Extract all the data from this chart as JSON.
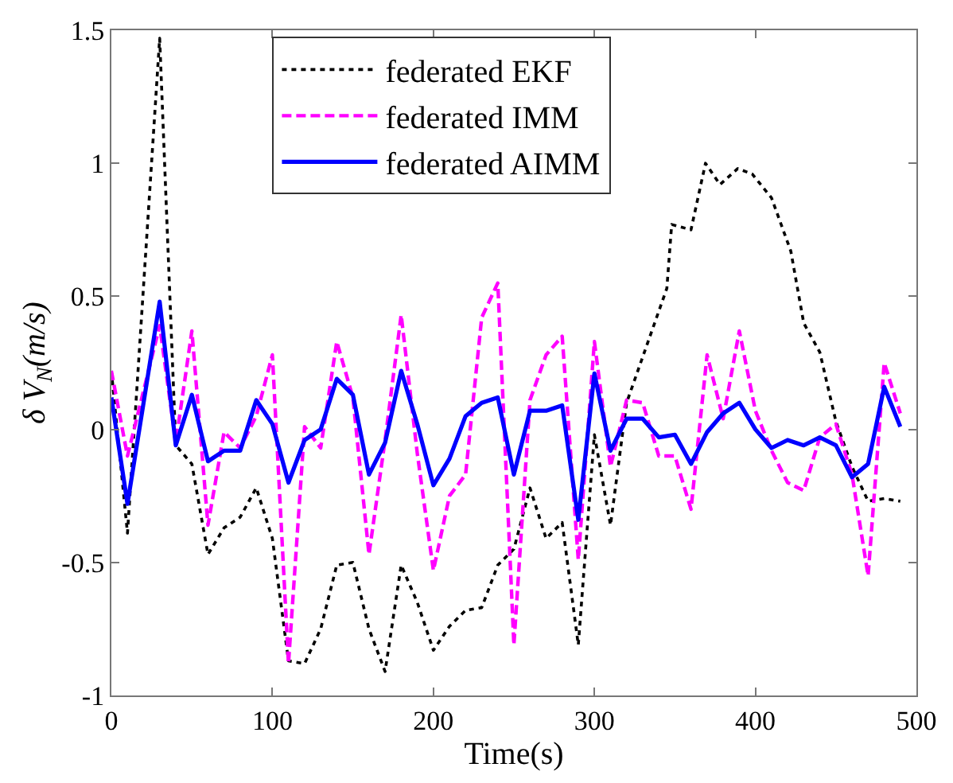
{
  "chart_data": {
    "type": "line",
    "xlabel": "Time(s)",
    "ylabel": "δ V$_{N}$(m/s)",
    "xlim": [
      0,
      500
    ],
    "xticks": [
      0,
      100,
      200,
      300,
      400,
      500
    ],
    "ylim": [
      -1,
      1.5
    ],
    "yticks": [
      -1,
      -0.5,
      0,
      0.5,
      1,
      1.5
    ],
    "legend": "top",
    "series": [
      {
        "name": "federated EKF",
        "color": "#000000",
        "line_style": "dotted",
        "x": [
          0,
          10,
          30,
          40,
          50,
          60,
          70,
          80,
          90,
          100,
          110,
          120,
          130,
          140,
          150,
          160,
          170,
          180,
          190,
          200,
          210,
          220,
          230,
          240,
          250,
          260,
          270,
          280,
          290,
          300,
          310,
          320,
          345,
          348,
          360,
          369,
          378,
          389,
          398,
          410,
          422,
          430,
          440,
          450,
          460,
          470,
          480,
          490
        ],
        "values": [
          0.22,
          -0.39,
          1.47,
          -0.06,
          -0.13,
          -0.47,
          -0.37,
          -0.33,
          -0.22,
          -0.41,
          -0.87,
          -0.88,
          -0.75,
          -0.51,
          -0.5,
          -0.75,
          -0.91,
          -0.51,
          -0.65,
          -0.83,
          -0.74,
          -0.68,
          -0.67,
          -0.51,
          -0.45,
          -0.22,
          -0.41,
          -0.35,
          -0.81,
          -0.02,
          -0.36,
          0.1,
          0.53,
          0.77,
          0.75,
          1.0,
          0.92,
          0.98,
          0.96,
          0.87,
          0.67,
          0.4,
          0.29,
          0.03,
          -0.14,
          -0.27,
          -0.26,
          -0.27
        ]
      },
      {
        "name": "federated IMM",
        "color": "#ff00ff",
        "line_style": "dashed",
        "x": [
          0,
          10,
          30,
          40,
          50,
          60,
          70,
          80,
          90,
          100,
          110,
          120,
          130,
          140,
          150,
          160,
          170,
          180,
          190,
          200,
          210,
          220,
          230,
          240,
          250,
          260,
          270,
          280,
          290,
          300,
          310,
          320,
          330,
          340,
          350,
          360,
          370,
          380,
          390,
          400,
          410,
          420,
          430,
          440,
          450,
          460,
          470,
          480,
          490
        ],
        "values": [
          0.22,
          -0.1,
          0.39,
          -0.05,
          0.37,
          -0.36,
          -0.01,
          -0.07,
          0.05,
          0.28,
          -0.88,
          0.01,
          -0.07,
          0.33,
          0.12,
          -0.47,
          -0.04,
          0.43,
          -0.09,
          -0.53,
          -0.25,
          -0.17,
          0.42,
          0.55,
          -0.81,
          0.11,
          0.28,
          0.35,
          -0.49,
          0.33,
          -0.14,
          0.11,
          0.1,
          -0.1,
          -0.1,
          -0.3,
          0.28,
          0.04,
          0.37,
          0.07,
          -0.08,
          -0.2,
          -0.23,
          -0.03,
          0.02,
          -0.17,
          -0.55,
          0.25,
          0.06
        ]
      },
      {
        "name": "federated AIMM",
        "color": "#0000ff",
        "line_style": "solid",
        "x": [
          0,
          10,
          30,
          40,
          50,
          60,
          70,
          80,
          90,
          100,
          110,
          120,
          130,
          140,
          150,
          160,
          170,
          180,
          190,
          200,
          210,
          220,
          230,
          240,
          250,
          260,
          270,
          280,
          290,
          300,
          310,
          320,
          330,
          340,
          350,
          360,
          370,
          380,
          390,
          400,
          410,
          420,
          430,
          440,
          450,
          460,
          470,
          480,
          490
        ],
        "values": [
          0.12,
          -0.28,
          0.48,
          -0.06,
          0.13,
          -0.12,
          -0.08,
          -0.08,
          0.11,
          0.02,
          -0.2,
          -0.04,
          0.0,
          0.19,
          0.13,
          -0.17,
          -0.05,
          0.22,
          0.02,
          -0.21,
          -0.11,
          0.05,
          0.1,
          0.12,
          -0.17,
          0.07,
          0.07,
          0.09,
          -0.34,
          0.21,
          -0.08,
          0.04,
          0.04,
          -0.03,
          -0.02,
          -0.13,
          -0.01,
          0.06,
          0.1,
          0.0,
          -0.07,
          -0.04,
          -0.06,
          -0.03,
          -0.06,
          -0.18,
          -0.13,
          0.16,
          0.01
        ]
      }
    ]
  }
}
